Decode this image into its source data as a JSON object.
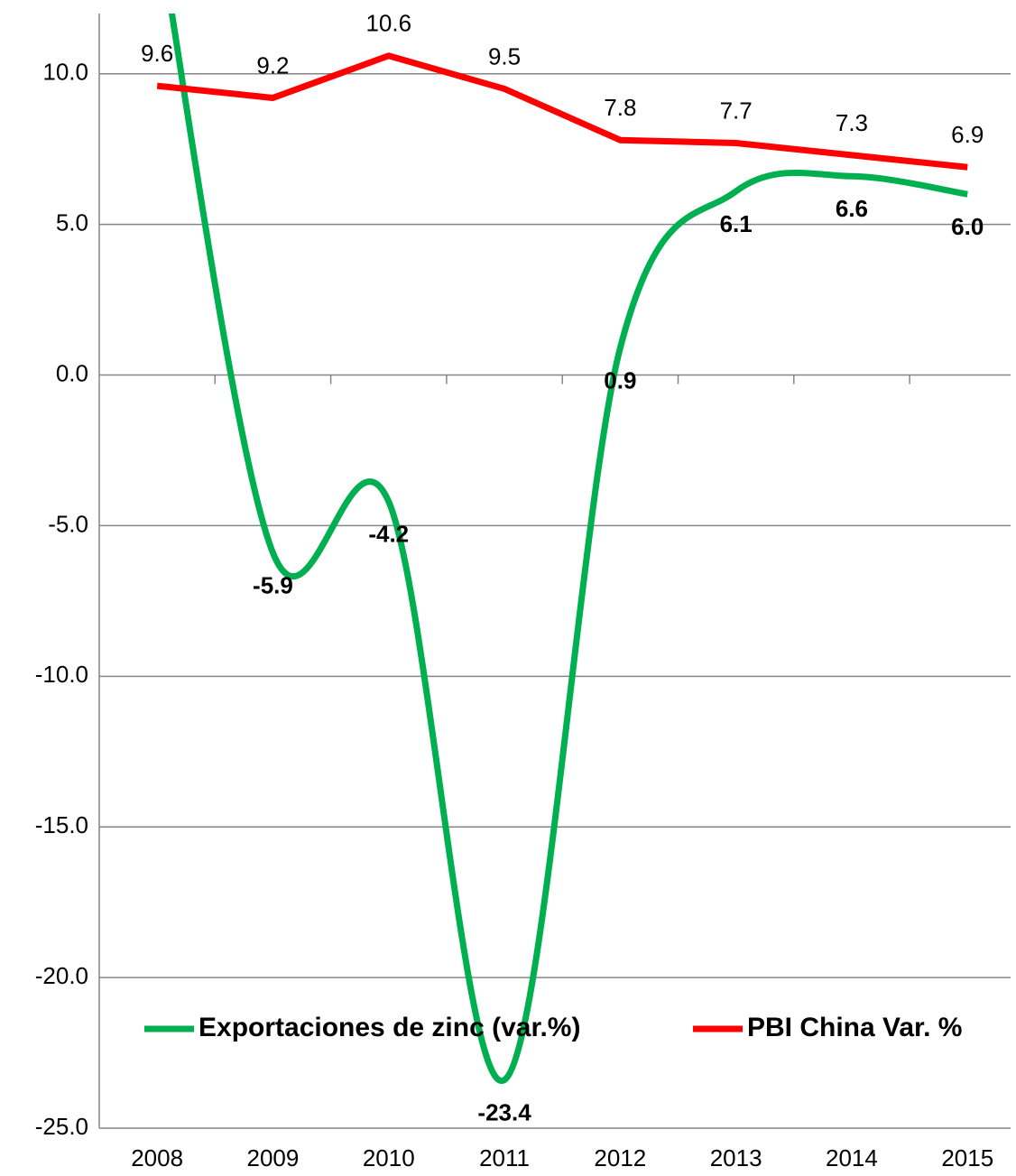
{
  "chart_data": {
    "type": "line",
    "categories": [
      "2008",
      "2009",
      "2010",
      "2011",
      "2012",
      "2013",
      "2014",
      "2015"
    ],
    "series": [
      {
        "name": "Exportaciones de zinc (var.%)",
        "color": "#00b050",
        "smooth": true,
        "values": [
          15,
          -5.9,
          -4.2,
          -23.4,
          0.9,
          6.1,
          6.6,
          6.0
        ],
        "value_labels": [
          null,
          "-5.9",
          "-4.2",
          "-23.4",
          "0.9",
          "6.1",
          "6.6",
          "6.0"
        ]
      },
      {
        "name": "PBI China Var. %",
        "color": "#ff0000",
        "smooth": false,
        "values": [
          9.6,
          9.2,
          10.6,
          9.5,
          7.8,
          7.7,
          7.3,
          6.9
        ]
      }
    ],
    "ylim": [
      -25,
      12
    ],
    "yticks": [
      {
        "value": -25,
        "label": "-25.0"
      },
      {
        "value": -20,
        "label": "-20.0"
      },
      {
        "value": -15,
        "label": "-15.0"
      },
      {
        "value": -10,
        "label": "-10.0"
      },
      {
        "value": -5,
        "label": "-5.0"
      },
      {
        "value": 0,
        "label": "0.0"
      },
      {
        "value": 5,
        "label": "5.0"
      },
      {
        "value": 10,
        "label": "10.0"
      }
    ],
    "grid": true,
    "legend": "bottom"
  }
}
